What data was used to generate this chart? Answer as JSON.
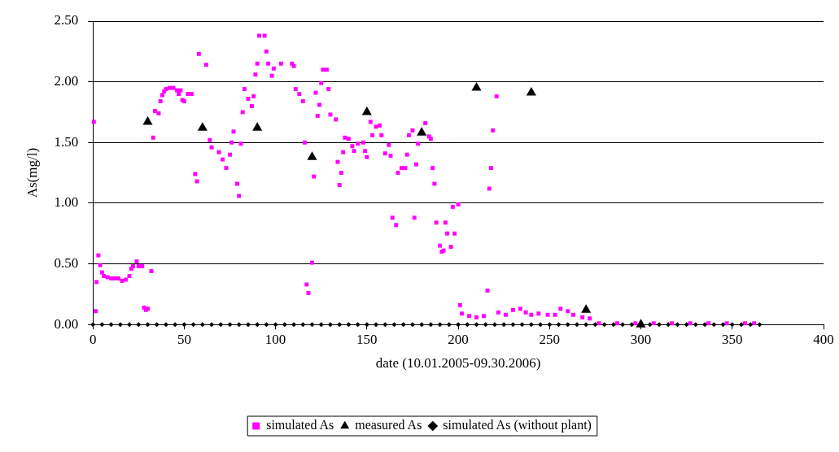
{
  "chart_data": {
    "type": "scatter",
    "xlabel": "date (10.01.2005-09.30.2006)",
    "ylabel": "As(mg/l)",
    "xlim": [
      0,
      400
    ],
    "xticks": [
      0,
      50,
      100,
      150,
      200,
      250,
      300,
      350,
      400
    ],
    "ylim": [
      0,
      2.5
    ],
    "yticks": [
      {
        "value": 0,
        "label": "0.00"
      },
      {
        "value": 0.5,
        "label": "0.50"
      },
      {
        "value": 1,
        "label": "1.00"
      },
      {
        "value": 1.5,
        "label": "1.50"
      },
      {
        "value": 2,
        "label": "2.00"
      },
      {
        "value": 2.5,
        "label": "2.50"
      }
    ],
    "grid": "y",
    "legend": "bottom",
    "series": [
      {
        "name": "simulated As",
        "color": "#ff00ff",
        "marker": "square",
        "x": [
          0.5,
          1.5,
          2,
          3,
          4,
          5,
          6,
          8,
          10,
          12,
          14,
          16,
          18,
          20,
          21,
          22,
          24,
          25,
          27,
          28,
          29,
          30,
          32,
          33,
          34,
          36,
          37,
          38,
          39,
          40,
          42,
          44,
          46,
          47,
          48,
          49,
          50,
          52,
          54,
          56,
          57,
          58,
          62,
          64,
          65,
          69,
          71,
          73,
          75,
          76,
          77,
          79,
          80,
          81,
          82,
          83,
          85,
          87,
          88,
          89,
          90,
          91,
          94,
          95,
          96,
          98,
          99,
          103,
          109,
          110,
          111,
          113,
          115,
          116,
          117,
          118,
          120,
          121,
          122,
          123,
          124,
          125,
          126,
          128,
          129,
          130,
          133,
          134,
          135,
          136,
          137,
          138,
          140,
          142,
          143,
          145,
          148,
          149,
          150,
          152,
          153,
          155,
          157,
          158,
          160,
          162,
          163,
          164,
          166,
          167,
          169,
          171,
          172,
          173,
          175,
          176,
          177,
          178,
          182,
          184,
          185,
          186,
          187,
          188,
          190,
          191,
          192,
          193,
          194,
          196,
          197,
          198,
          200,
          201,
          202,
          206,
          210,
          214,
          216,
          217,
          218,
          219,
          221,
          222,
          226,
          230,
          234,
          237,
          240,
          244,
          249,
          253,
          256,
          260,
          263,
          268,
          272,
          277,
          287,
          297,
          307,
          317,
          327,
          337,
          347,
          357,
          362
        ],
        "values": [
          1.67,
          0.11,
          0.35,
          0.57,
          0.49,
          0.43,
          0.4,
          0.39,
          0.38,
          0.38,
          0.38,
          0.36,
          0.37,
          0.4,
          0.46,
          0.48,
          0.52,
          0.48,
          0.48,
          0.14,
          0.12,
          0.13,
          0.44,
          1.54,
          1.76,
          1.74,
          1.84,
          1.89,
          1.92,
          1.94,
          1.95,
          1.95,
          1.93,
          1.9,
          1.93,
          1.85,
          1.84,
          1.9,
          1.9,
          1.24,
          1.18,
          2.23,
          2.14,
          1.52,
          1.46,
          1.42,
          1.36,
          1.29,
          1.4,
          1.5,
          1.59,
          1.16,
          1.06,
          1.49,
          1.75,
          1.94,
          1.86,
          1.8,
          1.88,
          2.06,
          2.15,
          2.38,
          2.38,
          2.25,
          2.15,
          2.05,
          2.11,
          2.15,
          2.15,
          2.13,
          1.94,
          1.9,
          1.84,
          1.5,
          0.33,
          0.26,
          0.51,
          1.22,
          1.91,
          1.72,
          1.81,
          1.99,
          2.1,
          2.1,
          1.94,
          1.73,
          1.69,
          1.34,
          1.15,
          1.25,
          1.42,
          1.54,
          1.53,
          1.47,
          1.43,
          1.49,
          1.5,
          1.43,
          1.38,
          1.67,
          1.56,
          1.63,
          1.64,
          1.56,
          1.41,
          1.48,
          1.39,
          0.88,
          0.82,
          1.25,
          1.29,
          1.29,
          1.4,
          1.56,
          1.6,
          0.88,
          1.32,
          1.49,
          1.66,
          1.55,
          1.53,
          1.29,
          1.16,
          0.84,
          0.65,
          0.6,
          0.61,
          0.84,
          0.75,
          0.64,
          0.97,
          0.75,
          0.99,
          0.16,
          0.09,
          0.07,
          0.06,
          0.07,
          0.28,
          1.12,
          1.29,
          1.6,
          1.88,
          0.1,
          0.08,
          0.12,
          0.13,
          0.1,
          0.08,
          0.09,
          0.08,
          0.08,
          0.13,
          0.11,
          0.08,
          0.06,
          0.05,
          0.01,
          0.01,
          0.01,
          0.01,
          0.01,
          0.01,
          0.01,
          0.01,
          0.01,
          0.01
        ]
      },
      {
        "name": "measured As",
        "color": "#000000",
        "marker": "triangle",
        "x": [
          30,
          60,
          90,
          120,
          150,
          180,
          210,
          240,
          270,
          300
        ],
        "values": [
          1.67,
          1.62,
          1.62,
          1.38,
          1.75,
          1.58,
          1.95,
          1.91,
          0.12,
          0
        ]
      },
      {
        "name": "simulated As (without plant)",
        "color": "#000000",
        "marker": "diamond",
        "x": [
          0,
          5,
          10,
          15,
          20,
          25,
          30,
          35,
          40,
          45,
          50,
          55,
          60,
          65,
          70,
          75,
          80,
          85,
          90,
          95,
          100,
          105,
          110,
          115,
          120,
          125,
          130,
          135,
          140,
          145,
          150,
          155,
          160,
          165,
          170,
          175,
          180,
          185,
          190,
          195,
          200,
          205,
          210,
          215,
          220,
          225,
          230,
          235,
          240,
          245,
          250,
          255,
          260,
          265,
          270,
          275,
          280,
          285,
          290,
          295,
          305,
          310,
          315,
          320,
          325,
          330,
          335,
          340,
          345,
          350,
          355,
          360,
          365
        ],
        "values": [
          0,
          0,
          0,
          0,
          0,
          0,
          0,
          0,
          0,
          0,
          0,
          0,
          0,
          0,
          0,
          0,
          0,
          0,
          0,
          0,
          0,
          0,
          0,
          0,
          0,
          0,
          0,
          0,
          0,
          0,
          0,
          0,
          0,
          0,
          0,
          0,
          0,
          0,
          0,
          0,
          0,
          0,
          0,
          0,
          0,
          0,
          0,
          0,
          0,
          0,
          0,
          0,
          0,
          0,
          0,
          0,
          0,
          0,
          0,
          0,
          0,
          0,
          0,
          0,
          0,
          0,
          0,
          0,
          0,
          0,
          0,
          0,
          0
        ]
      }
    ]
  }
}
